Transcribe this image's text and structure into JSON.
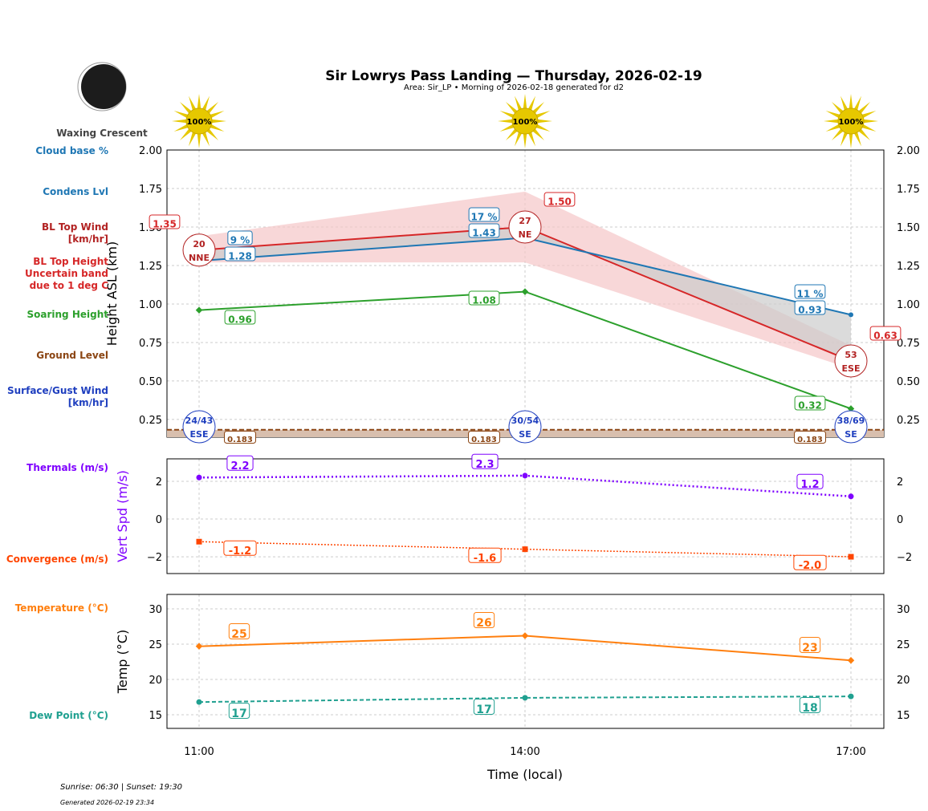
{
  "title": "Sir Lowrys Pass Landing — Thursday, 2026-02-19",
  "subtitle": "Area: Sir_LP • Morning of 2026-02-18 generated for d2",
  "moon_phase": "Waxing Crescent",
  "footer": {
    "sun": "Sunrise: 06:30 | Sunset: 19:30",
    "generated": "Generated 2026-02-19 23:34"
  },
  "colors": {
    "bl_top": "#d62728",
    "band": "#f5c6c8",
    "condens": "#1f77b4",
    "soaring": "#2ca02c",
    "ground": "#8b4513",
    "surface_wind": "#1f3fbf",
    "thermals": "#7f00ff",
    "convergence": "#ff4500",
    "temp": "#ff7f0e",
    "dew": "#20a090"
  },
  "chart_data": [
    {
      "type": "line",
      "xlabel": "",
      "ylabel": "Height ASL (km)",
      "x": [
        "11:00",
        "14:00",
        "17:00"
      ],
      "ylim": [
        0.135,
        2.0
      ],
      "yticks": [
        "0.25",
        "0.50",
        "0.75",
        "1.00",
        "1.25",
        "1.50",
        "1.75",
        "2.00"
      ],
      "grid": true,
      "sun_percent": [
        "100%",
        "100%",
        "100%"
      ],
      "side_labels": [
        "Cloud base %",
        "Condens Lvl",
        "BL Top Wind [km/hr]",
        "BL Top Height Uncertain band due to 1 deg C",
        "Soaring Height",
        "Ground Level",
        "Surface/Gust Wind [km/hr]"
      ],
      "series": [
        {
          "name": "BL Top Height",
          "values": [
            1.35,
            1.5,
            0.63
          ],
          "labels": [
            "1.35",
            "1.50",
            "0.63"
          ],
          "band_upper": [
            1.44,
            1.73,
            0.73
          ],
          "band_lower": [
            1.27,
            1.27,
            0.58
          ]
        },
        {
          "name": "Condens Lvl",
          "values": [
            1.28,
            1.43,
            0.93
          ],
          "labels": [
            "1.28",
            "1.43",
            "0.93"
          ],
          "cloud_base": [
            "9 %",
            "17 %",
            "11 %"
          ]
        },
        {
          "name": "Soaring Height",
          "values": [
            0.96,
            1.08,
            0.32
          ],
          "labels": [
            "0.96",
            "1.08",
            "0.32"
          ]
        },
        {
          "name": "Ground Level",
          "values": [
            0.183,
            0.183,
            0.183
          ],
          "labels": [
            "0.183",
            "0.183",
            "0.183"
          ]
        }
      ],
      "bl_top_wind": [
        {
          "speed": "20",
          "dir": "NNE"
        },
        {
          "speed": "27",
          "dir": "NE"
        },
        {
          "speed": "53",
          "dir": "ESE"
        }
      ],
      "surface_wind": [
        {
          "speed": "24/43",
          "dir": "ESE"
        },
        {
          "speed": "30/54",
          "dir": "SE"
        },
        {
          "speed": "38/69",
          "dir": "SE"
        }
      ]
    },
    {
      "type": "line",
      "ylabel": "Vert Spd (m/s)",
      "x": [
        "11:00",
        "14:00",
        "17:00"
      ],
      "ylim": [
        -2.89,
        3.19
      ],
      "yticks": [
        "−2",
        "0",
        "2"
      ],
      "grid": true,
      "series": [
        {
          "name": "Thermals (m/s)",
          "values": [
            2.2,
            2.3,
            1.2
          ],
          "labels": [
            "2.2",
            "2.3",
            "1.2"
          ]
        },
        {
          "name": "Convergence (m/s)",
          "values": [
            -1.2,
            -1.6,
            -2.0
          ],
          "labels": [
            "-1.2",
            "-1.6",
            "-2.0"
          ]
        }
      ]
    },
    {
      "type": "line",
      "ylabel": "Temp (°C)",
      "xlabel": "Time (local)",
      "x": [
        "11:00",
        "14:00",
        "17:00"
      ],
      "ylim": [
        13.07,
        32.05
      ],
      "yticks": [
        "15",
        "20",
        "25",
        "30"
      ],
      "grid": true,
      "series": [
        {
          "name": "Temperature (°C)",
          "values": [
            24.7,
            26.2,
            22.7
          ],
          "labels": [
            "25",
            "26",
            "23"
          ]
        },
        {
          "name": "Dew Point (°C)",
          "values": [
            16.8,
            17.4,
            17.6
          ],
          "labels": [
            "17",
            "17",
            "18"
          ]
        }
      ]
    }
  ]
}
